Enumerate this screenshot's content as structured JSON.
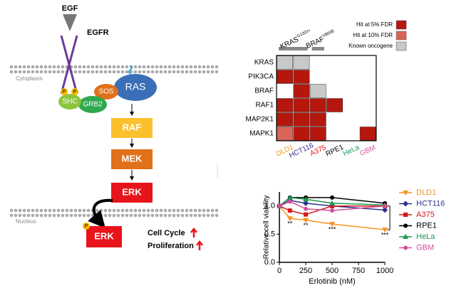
{
  "diagram": {
    "egf": "EGF",
    "egfr": "EGFR",
    "cytoplasm": "Cytoplasm",
    "nucleus": "Nucleus",
    "nodes": {
      "ras": "RAS",
      "sos": "SOS",
      "shc": "SHC",
      "grb2": "GRB2",
      "raf": "RAF",
      "mek": "MEK",
      "erk": "ERK",
      "erk_nucleus": "ERK"
    },
    "phospho": [
      "P",
      "P",
      "P"
    ],
    "outcomes": [
      "Cell Cycle",
      "Proliferation"
    ]
  },
  "chart_data": [
    {
      "type": "heatmap",
      "rows": [
        "KRAS",
        "PIK3CA",
        "BRAF",
        "RAF1",
        "MAP2K1",
        "MAPK1"
      ],
      "columns": [
        "DLD1",
        "HCT116",
        "A375",
        "RPE1",
        "HeLa",
        "GBM"
      ],
      "column_colors": [
        "#f7931e",
        "#2e3192",
        "#d7191c",
        "#000000",
        "#1a9850",
        "#d4509a"
      ],
      "groups": [
        {
          "text": "KRAS",
          "sup": "G13D/+"
        },
        {
          "text": "BRAF",
          "sup": "V600E"
        }
      ],
      "legend": [
        {
          "name": "Hit at 5% FDR",
          "color": "#b5170d"
        },
        {
          "name": "Hit at 10% FDR",
          "color": "#d9655a"
        },
        {
          "name": "Known oncogene",
          "color": "#c8c8c8"
        }
      ],
      "values": [
        [
          2,
          2,
          null,
          null,
          null,
          null
        ],
        [
          0,
          0,
          null,
          null,
          null,
          null
        ],
        [
          null,
          0,
          2,
          null,
          null,
          null
        ],
        [
          0,
          0,
          0,
          0,
          null,
          null
        ],
        [
          0,
          0,
          0,
          null,
          null,
          null
        ],
        [
          1,
          0,
          0,
          null,
          null,
          0
        ]
      ]
    },
    {
      "type": "line",
      "xlabel": "Erlotinib (nM)",
      "ylabel": "Relative cell viability",
      "x": [
        0,
        100,
        250,
        500,
        1000
      ],
      "xlim": [
        0,
        1000
      ],
      "xticks": [
        0,
        250,
        500,
        750,
        1000
      ],
      "ylim": [
        0,
        1.25
      ],
      "yticks": [
        {
          "value": 0,
          "label": "0.0"
        },
        {
          "value": 0.5,
          "label": "0.5"
        },
        {
          "value": 1,
          "label": "1.0"
        }
      ],
      "series": [
        {
          "name": "DLD1",
          "color": "#f7931e",
          "marker": "tri-down",
          "values": [
            1.0,
            0.78,
            0.75,
            0.68,
            0.58
          ]
        },
        {
          "name": "HCT116",
          "color": "#2e3192",
          "marker": "diamond",
          "values": [
            1.0,
            1.1,
            1.05,
            1.0,
            0.93
          ]
        },
        {
          "name": "A375",
          "color": "#d7191c",
          "marker": "square",
          "values": [
            1.0,
            0.92,
            0.85,
            1.0,
            1.0
          ]
        },
        {
          "name": "RPE1",
          "color": "#000000",
          "marker": "circle",
          "values": [
            1.0,
            1.15,
            1.15,
            1.15,
            1.05
          ]
        },
        {
          "name": "HeLa",
          "color": "#1a9850",
          "marker": "tri-up",
          "values": [
            1.0,
            1.15,
            1.12,
            1.05,
            1.02
          ]
        },
        {
          "name": "GBM",
          "color": "#d4509a",
          "marker": "circle",
          "values": [
            1.0,
            1.08,
            0.95,
            0.92,
            1.0
          ]
        }
      ],
      "annotations": [
        {
          "text": "**",
          "x": 100
        },
        {
          "text": "**",
          "x": 250
        },
        {
          "text": "***",
          "x": 500
        },
        {
          "text": "***",
          "x": 1000
        }
      ]
    }
  ]
}
